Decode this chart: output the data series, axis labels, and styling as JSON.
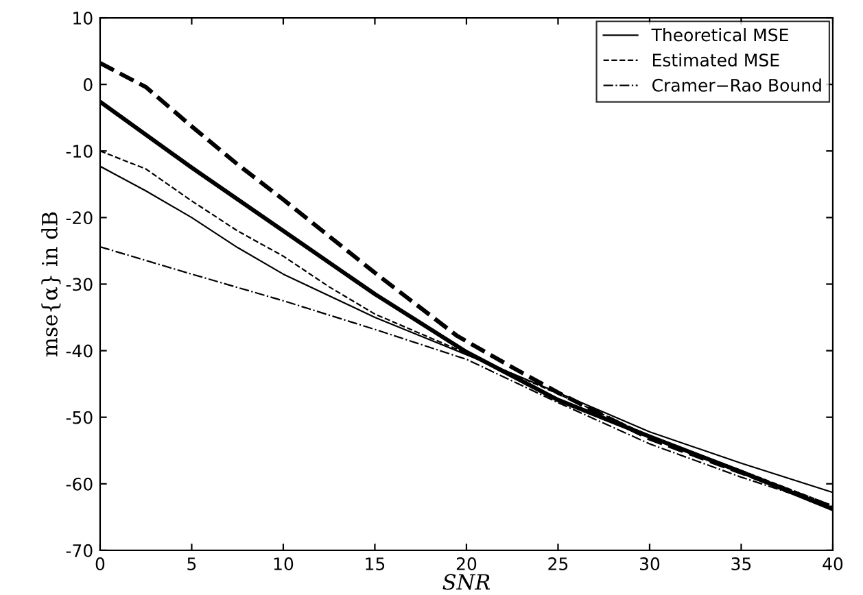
{
  "chart_data": {
    "type": "line",
    "xlabel": "SNR",
    "ylabel": "mse{α} in dB",
    "xlim": [
      0,
      40
    ],
    "ylim": [
      -70,
      10
    ],
    "xticks": [
      0,
      5,
      10,
      15,
      20,
      25,
      30,
      35,
      40
    ],
    "yticks": [
      -70,
      -60,
      -50,
      -40,
      -30,
      -20,
      -10,
      0,
      10
    ],
    "grid": false,
    "legend": "top right",
    "marker": "none",
    "series": [
      {
        "name": "Theoretical MSE",
        "color": "#000000",
        "line_style": "solid",
        "x": [
          0,
          2.5,
          5,
          7.5,
          10,
          15,
          20,
          25,
          30,
          35,
          40
        ],
        "values": [
          -12.3,
          -16,
          -20,
          -24.5,
          -28.5,
          -35,
          -40.6,
          -46.3,
          -52.2,
          -56.9,
          -61.3
        ]
      },
      {
        "name": "Estimated MSE",
        "color": "#000000",
        "line_style": "dashed",
        "x": [
          0,
          2.5,
          5,
          7.5,
          10,
          12.5,
          15,
          20,
          25,
          30,
          35,
          40
        ],
        "values": [
          -10,
          -12.7,
          -17.5,
          -22,
          -25.8,
          -30.4,
          -34.5,
          -40.4,
          -46.5,
          -52.8,
          -58,
          -63.3
        ]
      },
      {
        "name": "Cramer−Rao Bound",
        "color": "#000000",
        "line_style": "dashdot",
        "x": [
          0,
          5,
          10,
          15,
          20,
          25,
          30,
          35,
          40
        ],
        "values": [
          -24.4,
          -28.5,
          -32.5,
          -36.8,
          -41.3,
          -47.8,
          -54,
          -59,
          -63.5
        ]
      },
      {
        "color": "#000000",
        "line_style": "solid",
        "x": [
          0,
          5,
          10,
          15,
          20,
          25,
          30,
          35,
          40
        ],
        "values": [
          -2.6,
          -12.5,
          -22,
          -31.5,
          -40.2,
          -47.4,
          -52.9,
          -58.2,
          -63.8
        ]
      },
      {
        "color": "#000000",
        "line_style": "dashed",
        "x": [
          0,
          2.5,
          5,
          7.5,
          10,
          15,
          19.5,
          22.5,
          25,
          30,
          35,
          40
        ],
        "values": [
          3.2,
          -0.4,
          -6.3,
          -12,
          -17.3,
          -28.3,
          -37.8,
          -42.5,
          -46.3,
          -53.2,
          -58.3,
          -63.5
        ]
      }
    ]
  }
}
